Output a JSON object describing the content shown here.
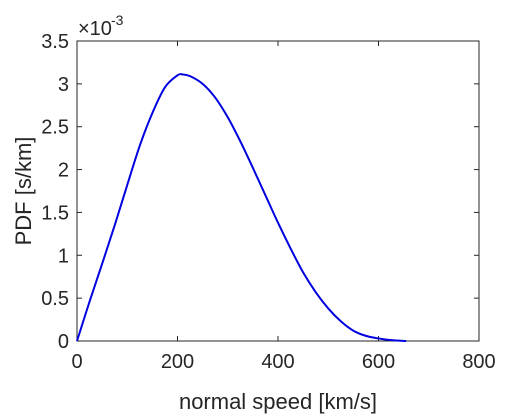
{
  "chart_data": {
    "type": "line",
    "xlabel": "normal speed [km/s]",
    "ylabel": "PDF  [s/km]",
    "xlim": [
      0,
      800
    ],
    "ylim": [
      0,
      0.0035
    ],
    "x_ticks": [
      "0",
      "200",
      "400",
      "600",
      "800"
    ],
    "y_ticks": [
      "0",
      "0.5",
      "1",
      "1.5",
      "2",
      "2.5",
      "3",
      "3.5"
    ],
    "y_multiplier": {
      "base": "×10",
      "exponent": "-3"
    },
    "grid": false,
    "line_color": "#0000e0",
    "series": [
      {
        "x": [
          0,
          25,
          50,
          75,
          100,
          125,
          150,
          175,
          200,
          210,
          225,
          250,
          275,
          300,
          325,
          350,
          375,
          400,
          425,
          450,
          475,
          500,
          525,
          550,
          575,
          600,
          625,
          655
        ],
        "y": [
          0,
          0.00046,
          0.0009,
          0.00135,
          0.00182,
          0.00228,
          0.00266,
          0.00296,
          0.0031,
          0.00311,
          0.00309,
          0.003,
          0.00284,
          0.00261,
          0.00233,
          0.00202,
          0.0017,
          0.00138,
          0.00108,
          0.0008,
          0.00057,
          0.00038,
          0.00023,
          0.00012,
          6e-05,
          3e-05,
          1e-05,
          0.0
        ]
      }
    ]
  }
}
